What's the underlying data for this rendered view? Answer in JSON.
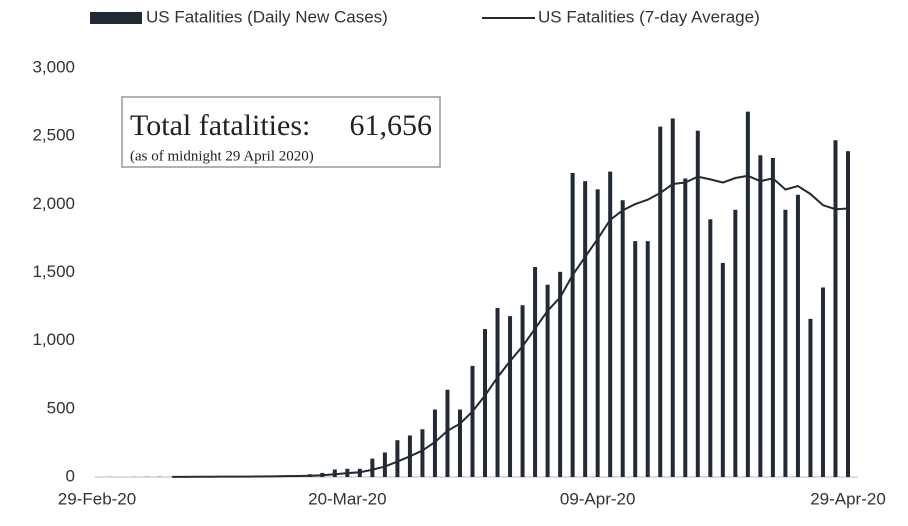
{
  "chart_data": {
    "type": "bar_line",
    "legend": "top",
    "annotations": [
      "Total fatalities:",
      "61,656",
      "(as of midnight 29 April 2020)"
    ],
    "categories": [
      "29-Feb-20",
      null,
      null,
      null,
      null,
      null,
      null,
      null,
      null,
      null,
      null,
      null,
      null,
      null,
      null,
      null,
      null,
      null,
      null,
      null,
      "20-Mar-20",
      null,
      null,
      null,
      null,
      null,
      null,
      null,
      null,
      null,
      null,
      null,
      null,
      null,
      null,
      null,
      null,
      null,
      null,
      null,
      "09-Apr-20",
      null,
      null,
      null,
      null,
      null,
      null,
      null,
      null,
      null,
      null,
      null,
      null,
      null,
      null,
      null,
      null,
      null,
      null,
      null,
      "29-Apr-20"
    ],
    "series": [
      {
        "name": "US Fatalities (Daily New Cases)",
        "kind": "bar",
        "color": "#222a35",
        "values": [
          0,
          1,
          0,
          1,
          2,
          2,
          1,
          3,
          3,
          4,
          4,
          3,
          6,
          8,
          8,
          10,
          10,
          20,
          30,
          55,
          60,
          60,
          135,
          180,
          270,
          305,
          350,
          495,
          640,
          495,
          815,
          1085,
          1240,
          1180,
          1260,
          1540,
          1410,
          1505,
          2230,
          2170,
          2110,
          2240,
          2030,
          1730,
          1730,
          2570,
          2630,
          2190,
          2540,
          1890,
          1570,
          1960,
          2680,
          2360,
          2340,
          1960,
          2070,
          1160,
          1390,
          2470,
          2390
        ]
      },
      {
        "name": "US Fatalities (7-day Average)",
        "kind": "line",
        "color": "#222a35",
        "values": [
          null,
          null,
          null,
          null,
          null,
          null,
          1,
          1,
          2,
          2,
          3,
          3,
          3,
          4,
          5,
          6,
          7,
          9,
          13,
          20,
          28,
          35,
          53,
          77,
          113,
          152,
          194,
          256,
          339,
          391,
          481,
          598,
          731,
          850,
          959,
          1088,
          1219,
          1317,
          1481,
          1614,
          1746,
          1886,
          1956,
          2002,
          2034,
          2083,
          2149,
          2160,
          2203,
          2183,
          2160,
          2193,
          2209,
          2170,
          2191,
          2109,
          2134,
          2076,
          1994,
          1964,
          1969
        ]
      }
    ],
    "ylim": [
      0,
      3000
    ],
    "yticks": [
      0,
      500,
      {
        "value": 1000,
        "label": "1,000"
      },
      {
        "value": 1500,
        "label": "1,500"
      },
      {
        "value": 2000,
        "label": "2,000"
      },
      {
        "value": 2500,
        "label": "2,500"
      },
      {
        "value": 3000,
        "label": "3,000"
      }
    ],
    "grid": false
  }
}
